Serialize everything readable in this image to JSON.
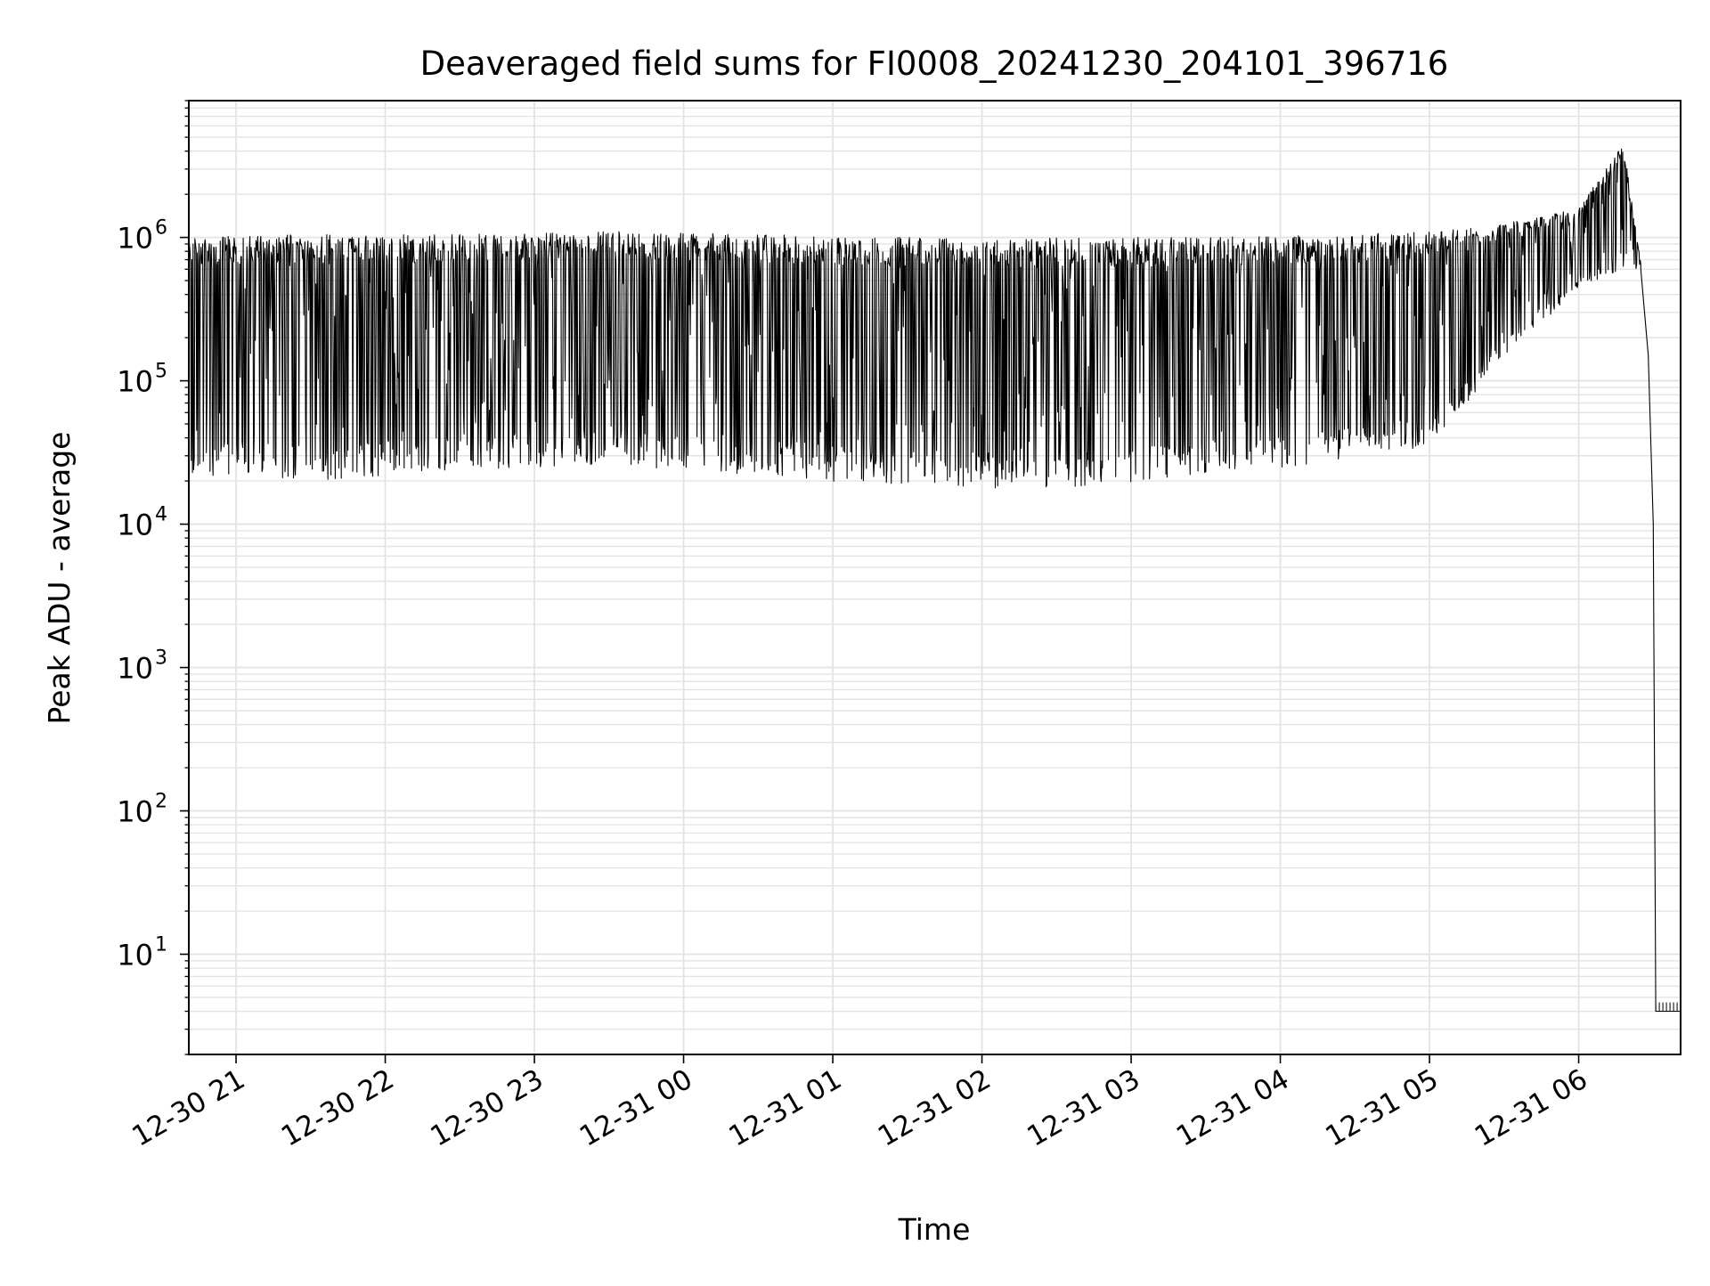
{
  "chart_data": {
    "type": "line",
    "title": "Deaveraged field sums for FI0008_20241230_204101_396716",
    "xlabel": "Time",
    "ylabel": "Peak ADU - average",
    "yscale": "log",
    "ylim": [
      2,
      9000000
    ],
    "xlim": [
      "2024-12-30T20:41",
      "2024-12-31T06:41"
    ],
    "grid": "major and minor, light gray",
    "line_color": "#000000",
    "x_ticks": [
      {
        "t": "2024-12-30T21:00",
        "label": "12-30 21"
      },
      {
        "t": "2024-12-30T22:00",
        "label": "12-30 22"
      },
      {
        "t": "2024-12-30T23:00",
        "label": "12-30 23"
      },
      {
        "t": "2024-12-31T00:00",
        "label": "12-31 00"
      },
      {
        "t": "2024-12-31T01:00",
        "label": "12-31 01"
      },
      {
        "t": "2024-12-31T02:00",
        "label": "12-31 02"
      },
      {
        "t": "2024-12-31T03:00",
        "label": "12-31 03"
      },
      {
        "t": "2024-12-31T04:00",
        "label": "12-31 04"
      },
      {
        "t": "2024-12-31T05:00",
        "label": "12-31 05"
      },
      {
        "t": "2024-12-31T06:00",
        "label": "12-31 06"
      }
    ],
    "y_ticks": [
      {
        "value": 10,
        "base": "10",
        "exp": "1"
      },
      {
        "value": 100,
        "base": "10",
        "exp": "2"
      },
      {
        "value": 1000,
        "base": "10",
        "exp": "3"
      },
      {
        "value": 10000,
        "base": "10",
        "exp": "4"
      },
      {
        "value": 100000,
        "base": "10",
        "exp": "5"
      },
      {
        "value": 1000000,
        "base": "10",
        "exp": "6"
      }
    ],
    "series_envelope": [
      {
        "t": "2024-12-30T20:41",
        "min": 22000,
        "max": 1000000
      },
      {
        "t": "2024-12-30T21:30",
        "min": 20000,
        "max": 1050000
      },
      {
        "t": "2024-12-30T22:30",
        "min": 24000,
        "max": 1050000
      },
      {
        "t": "2024-12-30T23:30",
        "min": 26000,
        "max": 1100000
      },
      {
        "t": "2024-12-31T00:30",
        "min": 22000,
        "max": 1050000
      },
      {
        "t": "2024-12-31T01:30",
        "min": 18000,
        "max": 1000000
      },
      {
        "t": "2024-12-31T02:30",
        "min": 17000,
        "max": 1000000
      },
      {
        "t": "2024-12-31T03:30",
        "min": 22000,
        "max": 1000000
      },
      {
        "t": "2024-12-31T04:30",
        "min": 28000,
        "max": 1050000
      },
      {
        "t": "2024-12-31T05:00",
        "min": 35000,
        "max": 1100000
      },
      {
        "t": "2024-12-31T05:30",
        "min": 140000,
        "max": 1250000
      },
      {
        "t": "2024-12-31T06:00",
        "min": 450000,
        "max": 1600000
      },
      {
        "t": "2024-12-31T06:18",
        "min": 600000,
        "max": 4500000
      },
      {
        "t": "2024-12-31T06:25",
        "min": 600000,
        "max": 650000
      }
    ],
    "tail": [
      {
        "t": "2024-12-31T06:25",
        "value": 600000
      },
      {
        "t": "2024-12-31T06:28",
        "value": 150000
      },
      {
        "t": "2024-12-31T06:30",
        "value": 10000
      },
      {
        "t": "2024-12-31T06:31",
        "value": 4
      },
      {
        "t": "2024-12-31T06:41",
        "value": 4
      }
    ]
  }
}
